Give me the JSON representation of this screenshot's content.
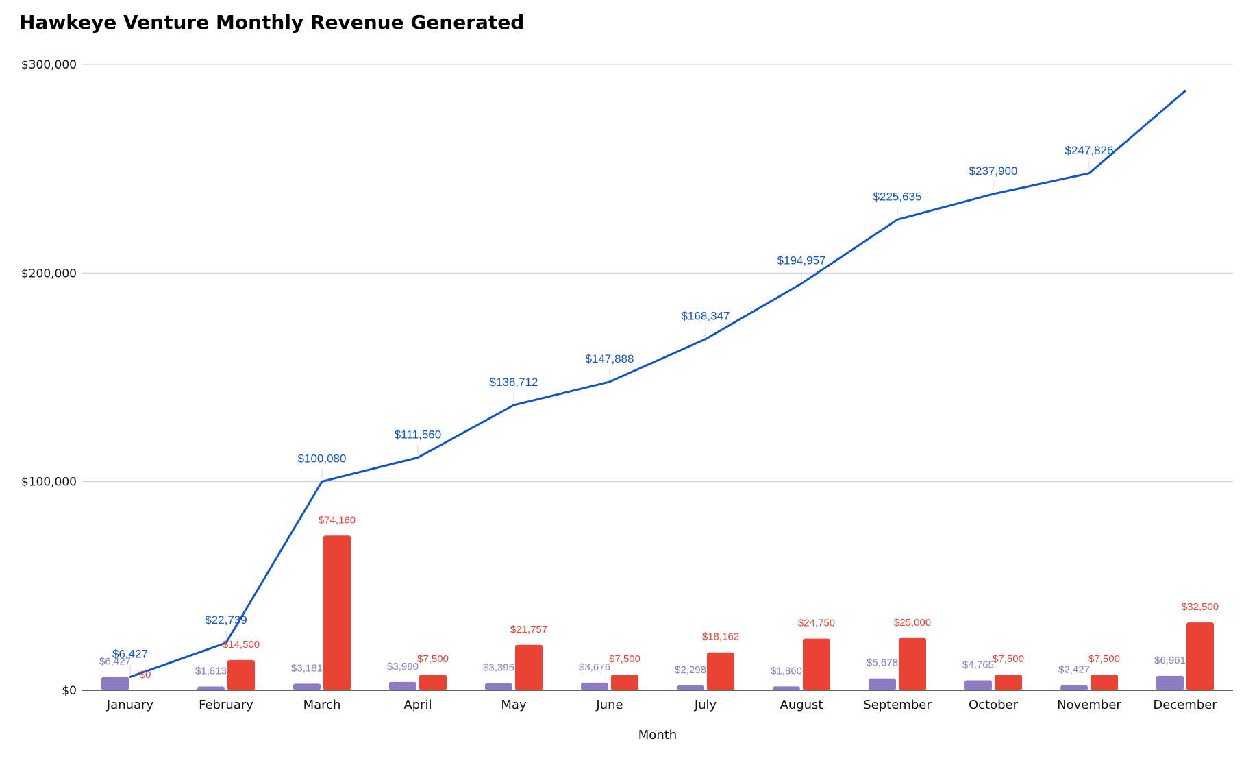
{
  "chart_data": {
    "type": "bar",
    "title": "Hawkeye Venture Monthly Revenue Generated",
    "xlabel": "Month",
    "ylabel": "",
    "ylim": [
      0,
      300000
    ],
    "categories": [
      "January",
      "February",
      "March",
      "April",
      "May",
      "June",
      "July",
      "August",
      "September",
      "October",
      "November",
      "December"
    ],
    "y_ticks": [
      "$0",
      "$100,000",
      "$200,000",
      "$300,000"
    ],
    "series": [
      {
        "type": "bar",
        "color": "#8e7cc3",
        "values": [
          6427,
          1813,
          3181,
          3980,
          3395,
          3676,
          2298,
          1860,
          5678,
          4765,
          2427,
          6961
        ],
        "labels": [
          "$6,427",
          "$1,813",
          "$3,181",
          "$3,980",
          "$3,395",
          "$3,676",
          "$2,298",
          "$1,860",
          "$5,678",
          "$4,765",
          "$2,427",
          "$6,961"
        ]
      },
      {
        "type": "bar",
        "color": "#ea4335",
        "values": [
          0,
          14500,
          74160,
          7500,
          21757,
          7500,
          18162,
          24750,
          25000,
          7500,
          7500,
          32500
        ],
        "labels": [
          "$0",
          "$14,500",
          "$74,160",
          "$7,500",
          "$21,757",
          "$7,500",
          "$18,162",
          "$24,750",
          "$25,000",
          "$7,500",
          "$7,500",
          "$32,500"
        ]
      },
      {
        "type": "line",
        "color": "#1155cc",
        "values": [
          6427,
          22739,
          100080,
          111560,
          136712,
          147888,
          168347,
          194957,
          225635,
          237900,
          247826,
          287287
        ],
        "labels": [
          "$6,427",
          "$22,739",
          "$100,080",
          "$111,560",
          "$136,712",
          "$147,888",
          "$168,347",
          "$194,957",
          "$225,635",
          "$237,900",
          "$247,826",
          ""
        ]
      }
    ],
    "grid": true,
    "legend": "none"
  }
}
